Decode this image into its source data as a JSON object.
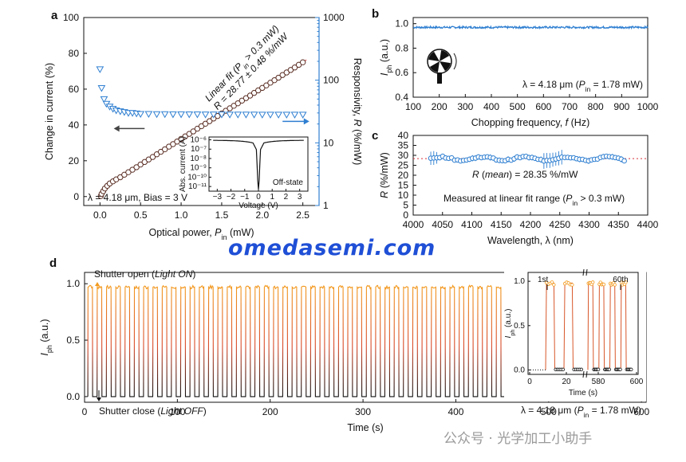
{
  "colors": {
    "brown": "#5a2e24",
    "blue": "#2f7fd1",
    "red": "#d8303a",
    "orange": "#f39a1e",
    "black": "#111111",
    "watermark": "#1f4fd6"
  },
  "watermark": "omedasemi.com",
  "footer_note": "公众号 · 光学加工小助手",
  "chart_data": [
    {
      "panel": "a",
      "type": "scatter",
      "xlabel": "Optical power, P_in (mW)",
      "ylabel": "Change in current (%)",
      "y2label": "Responsivity, R (%/mW)",
      "xlim": [
        -0.2,
        2.7
      ],
      "ylim": [
        -5,
        100
      ],
      "y2lim": [
        1,
        1000
      ],
      "y2scale": "log",
      "xticks": [
        "0.0",
        "0.5",
        "1.0",
        "1.5",
        "2.0",
        "2.5"
      ],
      "yticks": [
        "0",
        "20",
        "40",
        "60",
        "80",
        "100"
      ],
      "y2ticks": [
        "1",
        "10",
        "100",
        "1000"
      ],
      "annotation_fit": [
        "Linear fit (P_in > 0.3 mW)",
        "R = 28.77 ± 0.48 %/mW"
      ],
      "annotation_cond": "λ = 4.18 μm, Bias = 3 V",
      "series": [
        {
          "name": "Change in current",
          "axis": "left",
          "marker": "circle",
          "x": [
            0.01,
            0.02,
            0.04,
            0.06,
            0.09,
            0.12,
            0.16,
            0.2,
            0.25,
            0.3,
            0.35,
            0.4,
            0.45,
            0.5,
            0.55,
            0.6,
            0.65,
            0.7,
            0.75,
            0.8,
            0.85,
            0.9,
            0.95,
            1.0,
            1.05,
            1.1,
            1.15,
            1.2,
            1.25,
            1.3,
            1.35,
            1.4,
            1.45,
            1.5,
            1.55,
            1.6,
            1.65,
            1.7,
            1.75,
            1.8,
            1.85,
            1.9,
            1.95,
            2.0,
            2.05,
            2.1,
            2.15,
            2.2,
            2.25,
            2.3,
            2.35,
            2.4,
            2.45,
            2.5
          ],
          "y": [
            0.3,
            1.5,
            3,
            4.5,
            6,
            7.3,
            8.5,
            9.6,
            10.8,
            12.2,
            13.6,
            15,
            16.4,
            17.9,
            19.3,
            20.7,
            22.1,
            23.6,
            25,
            26.4,
            27.9,
            29.3,
            30.7,
            32.2,
            33.6,
            35,
            36.4,
            37.9,
            39.3,
            40.7,
            42.1,
            43.6,
            45,
            46.4,
            47.9,
            49.3,
            50.7,
            52.1,
            53.6,
            55,
            56.4,
            57.9,
            59.3,
            60.7,
            62.1,
            63.6,
            65,
            66.4,
            67.9,
            69.3,
            70.7,
            72.1,
            73.6,
            75
          ]
        },
        {
          "name": "Responsivity",
          "axis": "right",
          "marker": "triangle-down",
          "x": [
            0.0,
            0.02,
            0.05,
            0.08,
            0.12,
            0.16,
            0.2,
            0.25,
            0.3,
            0.35,
            0.4,
            0.45,
            0.5,
            0.6,
            0.7,
            0.8,
            0.9,
            1.0,
            1.1,
            1.2,
            1.3,
            1.4,
            1.5,
            1.6,
            1.7,
            1.8,
            1.9,
            2.0,
            2.1,
            2.2,
            2.3,
            2.4,
            2.5
          ],
          "y": [
            150,
            75,
            50,
            42,
            38,
            35,
            33,
            32,
            31,
            30,
            30,
            29.5,
            29,
            29,
            28.8,
            28.8,
            28.6,
            28.6,
            28.5,
            28.5,
            28.4,
            28.4,
            28.4,
            28.3,
            28.3,
            28.3,
            28.3,
            28.2,
            28.2,
            28.2,
            28.2,
            28.2,
            28.2
          ]
        }
      ],
      "inset": {
        "xlabel": "Voltage (V)",
        "ylabel": "Abs. current (A)",
        "label": "Off-state",
        "xticks": [
          "−3",
          "−2",
          "−1",
          "0",
          "1",
          "2",
          "3"
        ],
        "yticks": [
          "10⁻¹¹",
          "10⁻¹⁰",
          "10⁻⁹",
          "10⁻⁸",
          "10⁻⁷",
          "10⁻⁶"
        ]
      }
    },
    {
      "panel": "b",
      "type": "line",
      "xlabel": "Chopping frequency, f (Hz)",
      "ylabel": "I_ph (a.u.)",
      "xlim": [
        100,
        1000
      ],
      "ylim": [
        0.4,
        1.05
      ],
      "xticks": [
        "100",
        "200",
        "300",
        "400",
        "500",
        "600",
        "700",
        "800",
        "900",
        "1000"
      ],
      "yticks": [
        "0.4",
        "0.6",
        "0.8",
        "1.0"
      ],
      "annotation": "λ = 4.18 μm (P_in = 1.78 mW)",
      "series": [
        {
          "name": "I_ph",
          "x": [
            100,
            1000
          ],
          "y": [
            0.97,
            0.97
          ],
          "noise": 0.008
        }
      ]
    },
    {
      "panel": "c",
      "type": "scatter",
      "xlabel": "Wavelength, λ (nm)",
      "ylabel": "R (%/mW)",
      "xlim": [
        4000,
        4400
      ],
      "ylim": [
        0,
        40
      ],
      "xticks": [
        "4000",
        "4050",
        "4100",
        "4150",
        "4200",
        "4250",
        "4300",
        "4350",
        "4400"
      ],
      "yticks": [
        "0",
        "5",
        "10",
        "15",
        "20",
        "25",
        "30",
        "35",
        "40"
      ],
      "mean_value": 28.35,
      "annotation_mean": "R (mean) = 28.35 %/mW",
      "annotation_range": "Measured at linear fit range (P_in > 0.3 mW)",
      "series": [
        {
          "name": "R",
          "x_start": 4030,
          "x_end": 4360,
          "count": 66,
          "y_mean": 28.35
        }
      ]
    },
    {
      "panel": "d",
      "type": "line",
      "xlabel": "Time (s)",
      "ylabel": "I_ph (a.u.)",
      "xlim": [
        0,
        605
      ],
      "ylim": [
        -0.05,
        1.1
      ],
      "xticks": [
        "0",
        "100",
        "200",
        "300",
        "400",
        "500",
        "600"
      ],
      "yticks": [
        "0.0",
        "0.5",
        "1.0"
      ],
      "annotation_open": "Shutter open (Light ON)",
      "annotation_close": "Shutter close (Light OFF)",
      "annotation_cond": "λ = 4.18 μm (P_in = 1.78 mW)",
      "cycles": 60,
      "period_s": 10,
      "on_level": 0.97,
      "off_level": 0.0,
      "inset": {
        "xticks": [
          "0",
          "20",
          "580",
          "600"
        ],
        "yticks": [
          "0.0",
          "0.5",
          "1.0"
        ],
        "xlabel": "Time (s)",
        "ylabel": "I_ph (a.u.)",
        "first": "1st",
        "last": "60th"
      }
    }
  ]
}
